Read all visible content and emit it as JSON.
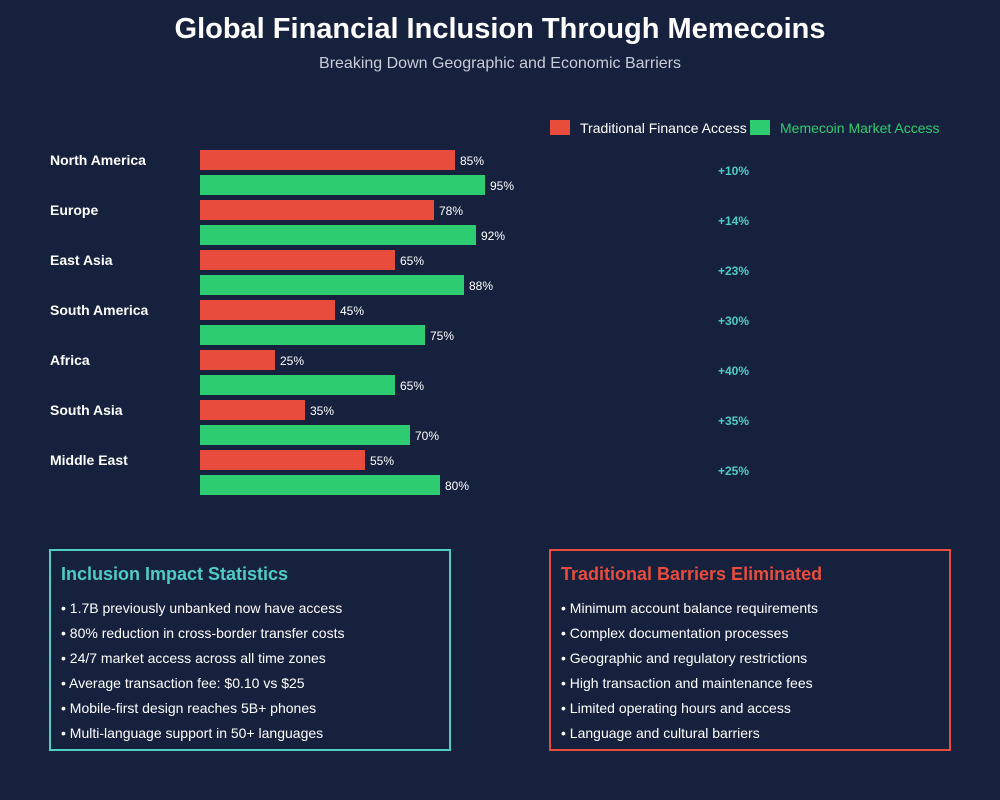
{
  "header": {
    "title": "Global Financial Inclusion Through Memecoins",
    "subtitle": "Breaking Down Geographic and Economic Barriers"
  },
  "colors": {
    "background": "#16213e",
    "traditional": "#e74c3c",
    "memecoin": "#2ecc71",
    "difference": "#4ecdc4",
    "text": "#ffffff"
  },
  "chart_data": {
    "type": "bar",
    "orientation": "horizontal",
    "categories": [
      "North America",
      "Europe",
      "East Asia",
      "South America",
      "Africa",
      "South Asia",
      "Middle East"
    ],
    "series": [
      {
        "name": "Traditional Finance Access",
        "values": [
          85,
          78,
          65,
          45,
          25,
          35,
          55
        ]
      },
      {
        "name": "Memecoin Market Access",
        "values": [
          95,
          92,
          88,
          75,
          65,
          70,
          80
        ]
      }
    ],
    "value_labels": {
      "traditional": [
        "85%",
        "78%",
        "65%",
        "45%",
        "25%",
        "35%",
        "55%"
      ],
      "memecoin": [
        "95%",
        "92%",
        "88%",
        "75%",
        "65%",
        "70%",
        "80%"
      ]
    },
    "differences": [
      "+10%",
      "+14%",
      "+23%",
      "+30%",
      "+40%",
      "+35%",
      "+25%"
    ],
    "unit": "%",
    "xlim": [
      0,
      100
    ],
    "legend": [
      "Traditional Finance Access",
      "Memecoin Market Access"
    ],
    "legend_position": "top-right",
    "grid": false
  },
  "panels": {
    "stats": {
      "title": "Inclusion Impact Statistics",
      "items": [
        "1.7B previously unbanked now have access",
        "80% reduction in cross-border transfer costs",
        "24/7 market access across all time zones",
        "Average transaction fee: $0.10 vs $25",
        "Mobile-first design reaches 5B+ phones",
        "Multi-language support in 50+ languages"
      ]
    },
    "barriers": {
      "title": "Traditional Barriers Eliminated",
      "items": [
        "Minimum account balance requirements",
        "Complex documentation processes",
        "Geographic and regulatory restrictions",
        "High transaction and maintenance fees",
        "Limited operating hours and access",
        "Language and cultural barriers"
      ]
    }
  }
}
